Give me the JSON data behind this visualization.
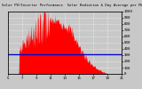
{
  "title": "Solar Radiation & Day Average per Minute",
  "title2": "Solar PV/Inverter Performance",
  "bar_color": "#ff0000",
  "avg_line_color": "#0000cc",
  "grid_color": "#ffffff",
  "plot_bg_color": "#c8c8c8",
  "outer_bg": "#c8c8c8",
  "ylim": [
    0,
    1000
  ],
  "xlim": [
    0,
    288
  ],
  "avg_value": 320,
  "x_ticks": [
    0,
    36,
    72,
    108,
    144,
    180,
    216,
    252,
    288
  ],
  "x_labels": [
    "5",
    "7",
    "9",
    "11",
    "13",
    "15",
    "17",
    "19",
    "21"
  ],
  "y_ticks": [
    0,
    100,
    200,
    300,
    400,
    500,
    600,
    700,
    800,
    900,
    1000
  ],
  "y_labels": [
    "0",
    "10",
    "20",
    "30",
    "40",
    "50",
    "60",
    "70",
    "80",
    "90",
    "100"
  ],
  "right_labels": [
    "1000",
    "900",
    "800",
    "700",
    "600",
    "500",
    "400",
    "300",
    "200",
    "100",
    "0"
  ],
  "dotted_color": "#ffffff",
  "title_color": "#000000"
}
